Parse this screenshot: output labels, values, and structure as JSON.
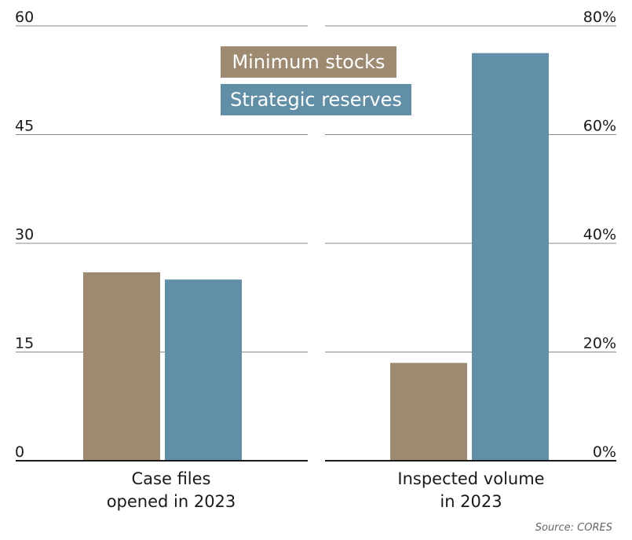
{
  "chart_data": [
    {
      "type": "bar",
      "categories": [
        "Case files opened in 2023"
      ],
      "category_lines": [
        [
          "Case files",
          "opened in 2023"
        ]
      ],
      "series": [
        {
          "name": "Minimum stocks",
          "values": [
            26
          ]
        },
        {
          "name": "Strategic reserves",
          "values": [
            25
          ]
        }
      ],
      "ylim": [
        0,
        60
      ],
      "yticks": [
        "0",
        "15",
        "30",
        "45",
        "60"
      ],
      "ytick_values": [
        0,
        15,
        30,
        45,
        60
      ],
      "axis_side": "left"
    },
    {
      "type": "bar",
      "categories": [
        "Inspected volume in 2023"
      ],
      "category_lines": [
        [
          "Inspected volume",
          "in 2023"
        ]
      ],
      "series": [
        {
          "name": "Minimum stocks",
          "values": [
            18
          ]
        },
        {
          "name": "Strategic reserves",
          "values": [
            75
          ]
        }
      ],
      "ylim": [
        0,
        80
      ],
      "yticks": [
        "0%",
        "20%",
        "40%",
        "60%",
        "80%"
      ],
      "ytick_values": [
        0,
        20,
        40,
        60,
        80
      ],
      "axis_side": "right"
    }
  ],
  "legend": [
    {
      "label": "Minimum stocks",
      "color": "#9e8a70"
    },
    {
      "label": "Strategic reserves",
      "color": "#628fa8"
    }
  ],
  "grid": true,
  "source": "Source: CORES"
}
